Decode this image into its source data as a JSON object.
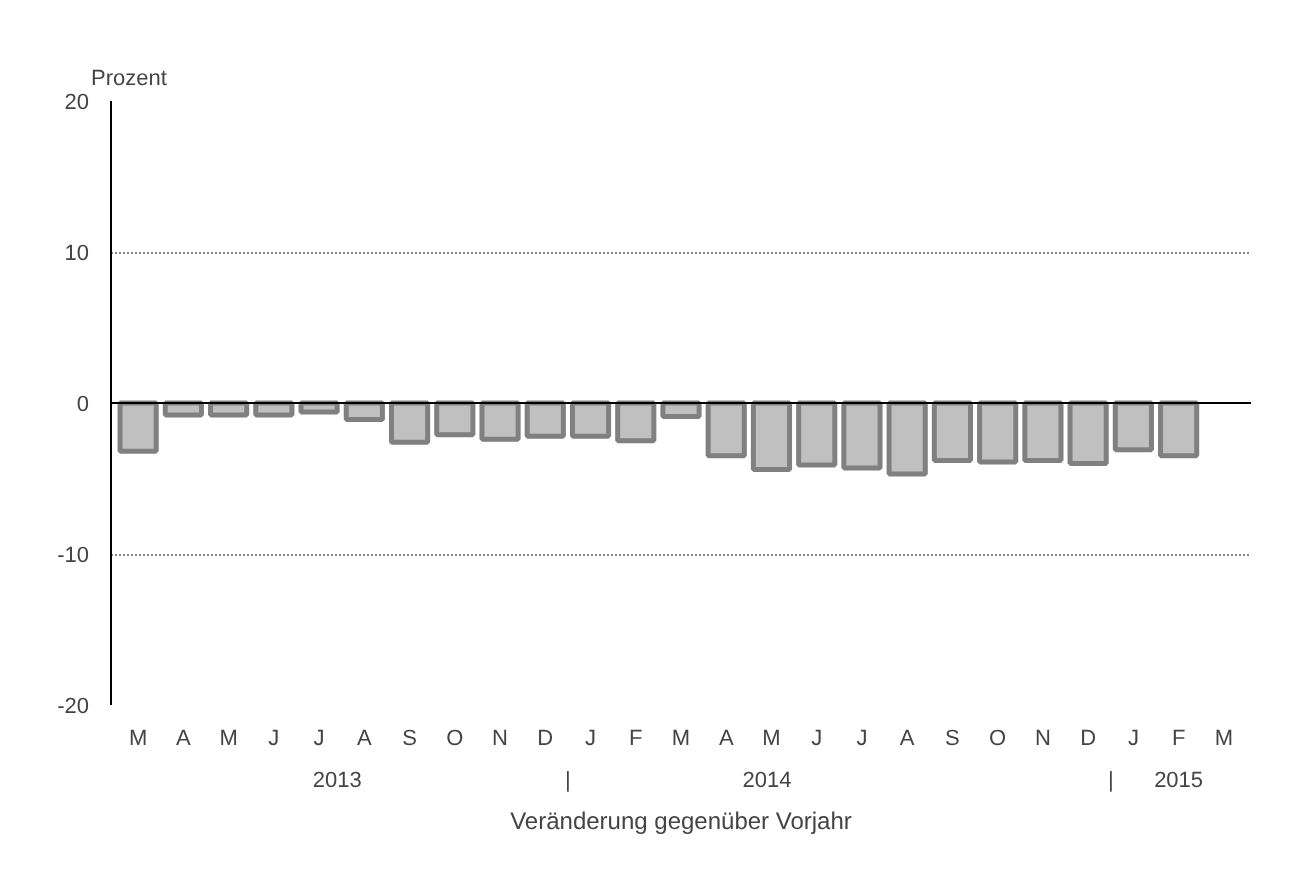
{
  "chart_data": {
    "type": "bar",
    "ylabel": "Prozent",
    "xlabel": "Veränderung gegenüber Vorjahr",
    "categories": [
      "M",
      "A",
      "M",
      "J",
      "J",
      "A",
      "S",
      "O",
      "N",
      "D",
      "J",
      "F",
      "M",
      "A",
      "M",
      "J",
      "J",
      "A",
      "S",
      "O",
      "N",
      "D",
      "J",
      "F",
      "M"
    ],
    "series": [
      {
        "color": "#c0c0c0",
        "values": [
          -3.2,
          -0.8,
          -0.8,
          -0.8,
          -0.6,
          -1.1,
          -2.6,
          -2.1,
          -2.4,
          -2.2,
          -2.2,
          -2.5,
          -0.9,
          -3.5,
          -4.4,
          -4.1,
          -4.3,
          -4.7,
          -3.8,
          -3.9,
          -3.8,
          -4.0,
          -3.1,
          -3.5,
          null
        ]
      }
    ],
    "ylim": [
      -20,
      20
    ],
    "yticks": [
      -20,
      -10,
      0,
      10,
      20
    ],
    "grid": "y",
    "annotations": [
      "2013",
      "|",
      "2014",
      "|",
      "2015"
    ]
  }
}
